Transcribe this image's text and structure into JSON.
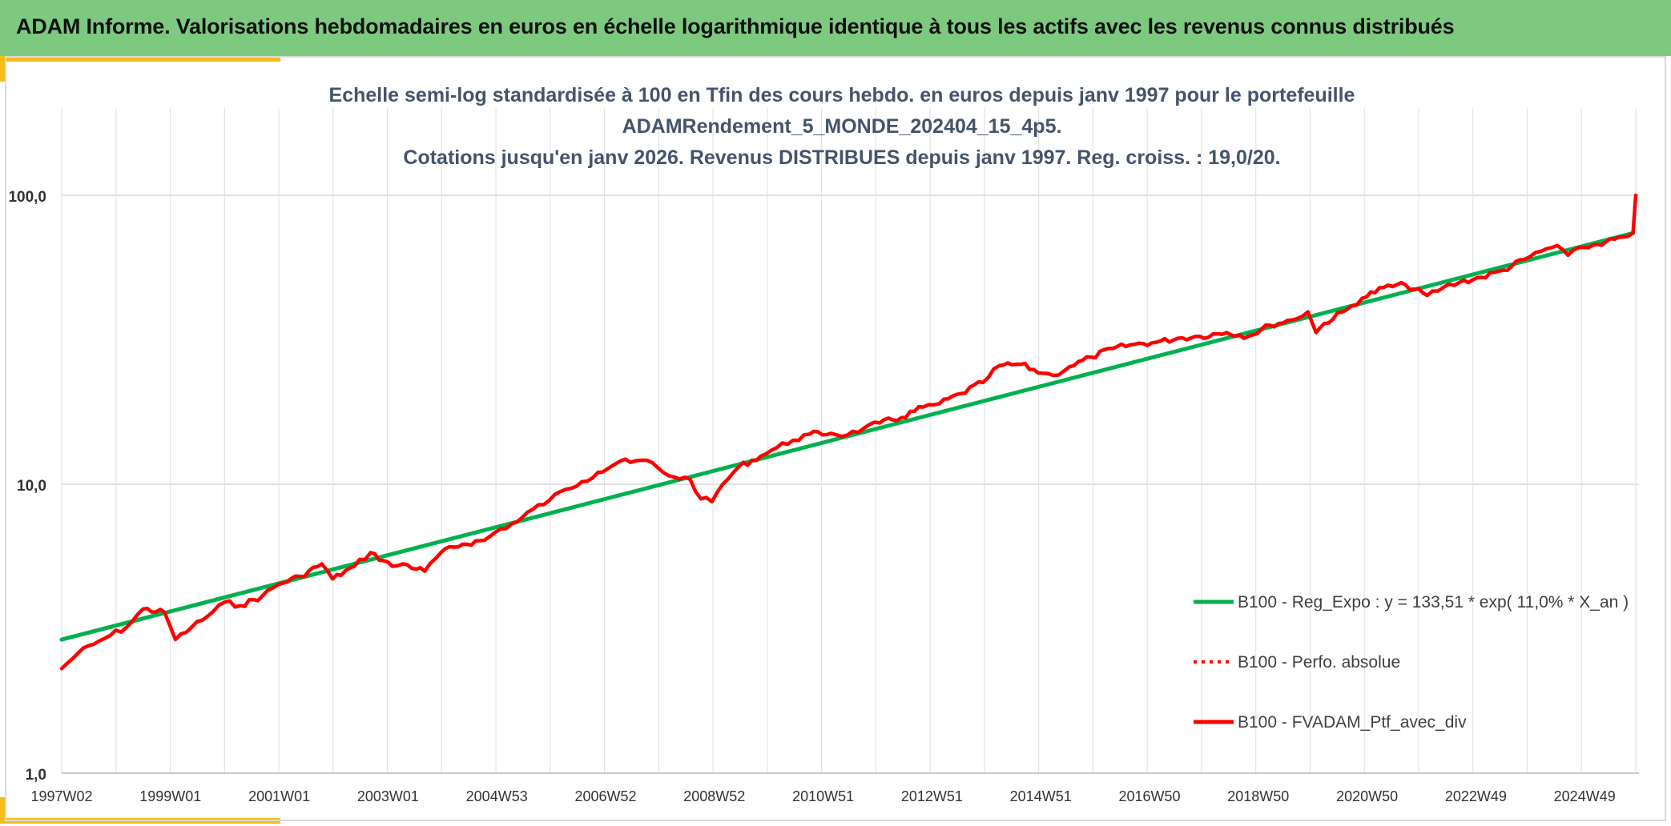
{
  "header": {
    "title": "ADAM Informe. Valorisations hebdomadaires en euros en échelle logarithmique identique à tous les actifs avec les revenus connus distribués"
  },
  "colors": {
    "header_bg": "#7dc97f",
    "accent": "#f6be1b",
    "regression": "#00b050",
    "portfolio": "#ff0000",
    "grid": "#d9d9d9"
  },
  "chart_data": {
    "type": "line",
    "title_lines": [
      "Echelle semi-log standardisée à 100 en Tfin des cours hebdo. en euros depuis janv 1997 pour le portefeuille",
      "ADAMRendement_5_MONDE_202404_15_4p5.",
      "Cotations jusqu'en janv 2026. Revenus DISTRIBUES depuis janv 1997. Reg. croiss. : 19,0/20."
    ],
    "y_scale": "log",
    "ylim": [
      1,
      100
    ],
    "y_ticks": [
      "1,0",
      "10,0",
      "100,0"
    ],
    "x_tick_labels": [
      "1997W02",
      "1999W01",
      "2001W01",
      "2003W01",
      "2004W53",
      "2006W52",
      "2008W52",
      "2010W51",
      "2012W51",
      "2014W51",
      "2016W50",
      "2018W50",
      "2020W50",
      "2022W49",
      "2024W49"
    ],
    "x_range": [
      1997.0,
      2026.05
    ],
    "grid": "vertical and horizontal",
    "legend_position": "bottom-right",
    "series": [
      {
        "name": "B100 - Reg_Expo : y = 133,51 * exp( 11,0% *  X_an )",
        "style": "solid-green",
        "x": [
          1997.0,
          2026.0
        ],
        "y": [
          2.9,
          74
        ]
      },
      {
        "name": "B100 - Perfo. absolue",
        "style": "dotted-red",
        "x": [],
        "y": []
      },
      {
        "name": "B100 - FVADAM_Ptf_avec_div",
        "style": "solid-red",
        "x": [
          1997.0,
          1997.3,
          1997.6,
          1997.9,
          1998.2,
          1998.5,
          1998.9,
          1999.1,
          1999.4,
          1999.7,
          2000.0,
          2000.3,
          2000.7,
          2001.0,
          2001.4,
          2001.8,
          2002.0,
          2002.4,
          2002.7,
          2003.1,
          2003.3,
          2003.7,
          2004.0,
          2004.4,
          2004.8,
          2005.1,
          2005.4,
          2005.7,
          2006.0,
          2006.3,
          2006.6,
          2006.9,
          2007.3,
          2007.5,
          2007.8,
          2008.1,
          2008.3,
          2008.6,
          2008.8,
          2009.0,
          2009.2,
          2009.5,
          2009.9,
          2010.2,
          2010.5,
          2010.8,
          2011.2,
          2011.5,
          2011.8,
          2012.1,
          2012.5,
          2012.9,
          2013.2,
          2013.6,
          2014.0,
          2014.3,
          2014.7,
          2015.1,
          2015.3,
          2015.6,
          2016.0,
          2016.4,
          2016.8,
          2017.2,
          2017.6,
          2018.0,
          2018.5,
          2018.9,
          2019.3,
          2019.7,
          2020.0,
          2020.15,
          2020.3,
          2020.7,
          2021.0,
          2021.4,
          2021.8,
          2022.2,
          2022.5,
          2022.8,
          2023.2,
          2023.6,
          2024.0,
          2024.3,
          2024.6,
          2024.8,
          2025.1,
          2025.5,
          2025.9,
          2026.0,
          2026.05
        ],
        "y": [
          2.3,
          2.6,
          2.8,
          3.0,
          3.2,
          3.7,
          3.6,
          2.9,
          3.2,
          3.5,
          3.9,
          3.8,
          4.1,
          4.5,
          4.8,
          5.3,
          4.7,
          5.2,
          5.8,
          5.2,
          5.3,
          5.0,
          5.8,
          6.2,
          6.4,
          7.0,
          7.4,
          8.2,
          8.8,
          9.6,
          10.2,
          11.0,
          12.0,
          11.9,
          12.1,
          11.0,
          10.6,
          10.4,
          8.9,
          8.7,
          10.0,
          11.5,
          12.5,
          13.4,
          14.2,
          14.9,
          15.0,
          14.8,
          15.6,
          16.3,
          17.0,
          18.5,
          19.0,
          20.6,
          22.5,
          25.7,
          26.0,
          24.2,
          23.8,
          25.5,
          27.5,
          29.5,
          30.5,
          31.0,
          32.0,
          32.5,
          33.5,
          32.5,
          35.5,
          37.0,
          39.5,
          33.5,
          36.0,
          40.0,
          44.0,
          48.0,
          49.0,
          45.0,
          48.0,
          50.0,
          52.0,
          55.0,
          60.0,
          64.0,
          67.0,
          62.0,
          66.0,
          69.0,
          72.0,
          74.0,
          100.0
        ]
      }
    ]
  }
}
